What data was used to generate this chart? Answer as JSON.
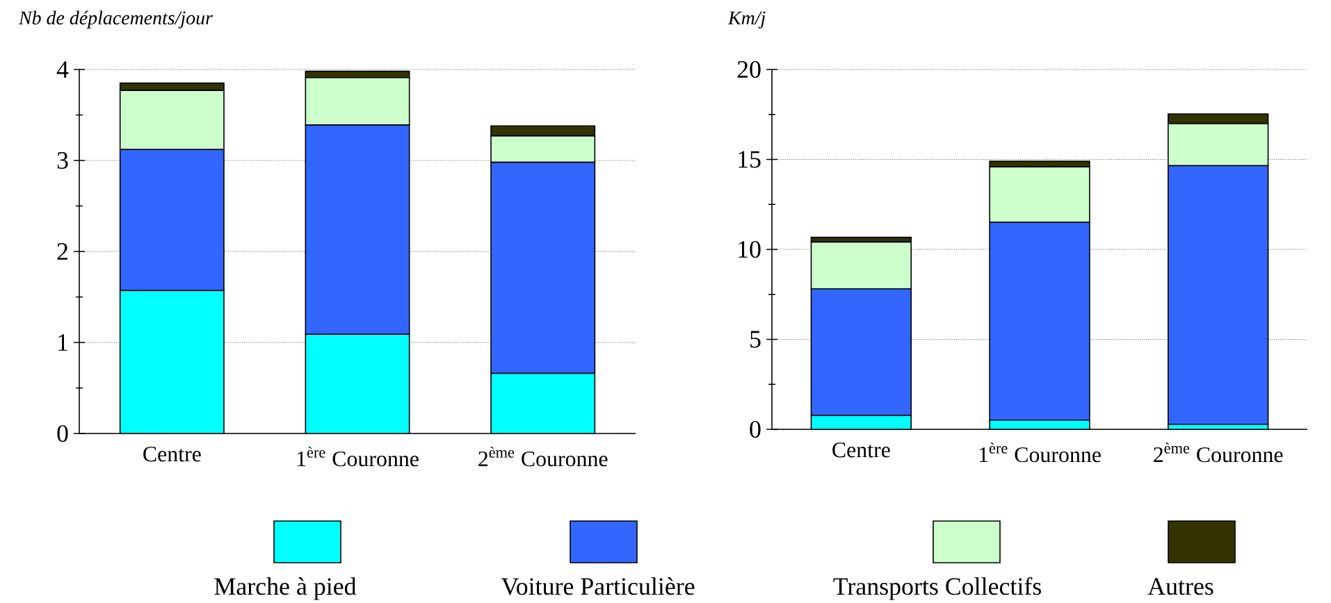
{
  "chart_data": [
    {
      "type": "bar",
      "stacked": true,
      "ylabel": "Nb de déplacements/jour",
      "categories": [
        "Centre",
        "1$^{ère}$ Couronne",
        "2$^{ème}$ Couronne"
      ],
      "ylim": [
        0,
        4
      ],
      "yticks": [
        0,
        1,
        2,
        3,
        4
      ],
      "grid": "y",
      "legend": "bottom",
      "series": [
        {
          "name": "Marche à pied",
          "color": "#00ffff",
          "values": [
            1.57,
            1.09,
            0.66
          ]
        },
        {
          "name": "Voiture Particulière",
          "color": "#3366ff",
          "values": [
            1.55,
            2.3,
            2.32
          ]
        },
        {
          "name": "Transports Collectifs",
          "color": "#ccffcc",
          "values": [
            0.65,
            0.52,
            0.29
          ]
        },
        {
          "name": "Autres",
          "color": "#333300",
          "values": [
            0.08,
            0.07,
            0.11
          ]
        }
      ]
    },
    {
      "type": "bar",
      "stacked": true,
      "ylabel": "Km/j",
      "categories": [
        "Centre",
        "1$^{ère}$ Couronne",
        "2$^{ème}$ Couronne"
      ],
      "ylim": [
        0,
        20
      ],
      "yticks": [
        0,
        5,
        10,
        15,
        20
      ],
      "grid": "y",
      "series": [
        {
          "color": "#00ffff",
          "values": [
            0.77,
            0.51,
            0.28
          ]
        },
        {
          "color": "#3366ff",
          "values": [
            7.04,
            11.0,
            14.37
          ]
        },
        {
          "color": "#ccffcc",
          "values": [
            2.6,
            3.08,
            2.34
          ]
        },
        {
          "color": "#333300",
          "values": [
            0.26,
            0.31,
            0.54
          ]
        }
      ]
    }
  ]
}
